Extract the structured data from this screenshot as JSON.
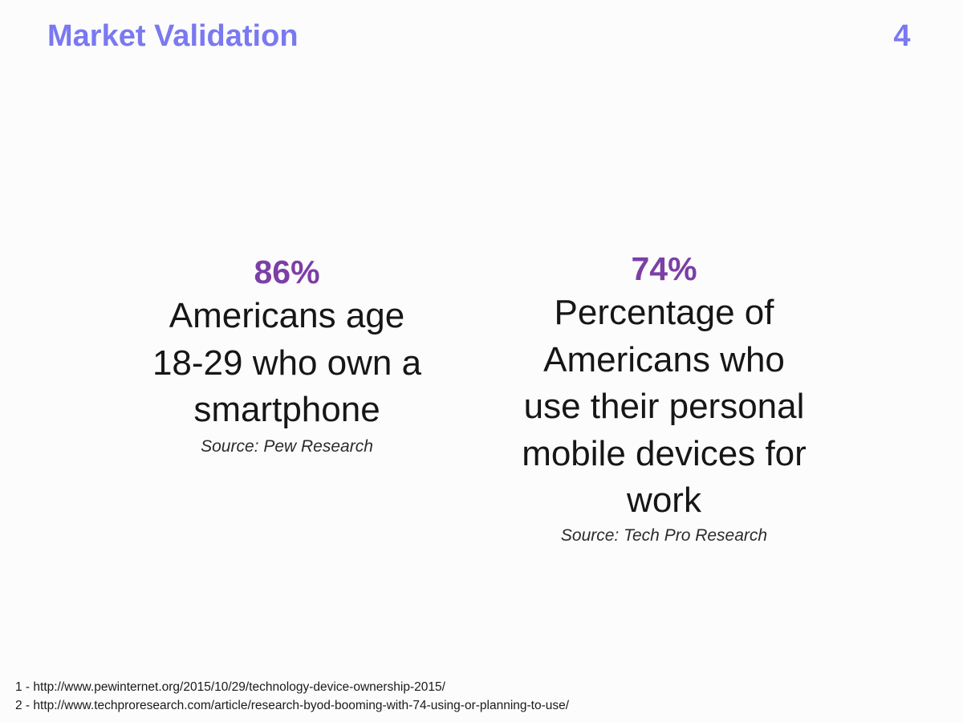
{
  "header": {
    "title": "Market Validation",
    "page_number": "4"
  },
  "stats": [
    {
      "value": "86%",
      "description_lines": [
        "Americans age",
        "18-29 who own a",
        "smartphone"
      ],
      "source": "Source: Pew Research"
    },
    {
      "value": "74%",
      "description_lines": [
        "Percentage of",
        "Americans who",
        "use their personal",
        "mobile devices for",
        "work"
      ],
      "source": "Source: Tech Pro Research"
    }
  ],
  "footnotes": [
    "1 - http://www.pewinternet.org/2015/10/29/technology-device-ownership-2015/",
    "2 - http://www.techproresearch.com/article/research-byod-booming-with-74-using-or-planning-to-use/"
  ],
  "colors": {
    "title": "#7a79f0",
    "stat_value": "#7b3fa6",
    "text": "#161616",
    "background": "#fdfcfd"
  }
}
